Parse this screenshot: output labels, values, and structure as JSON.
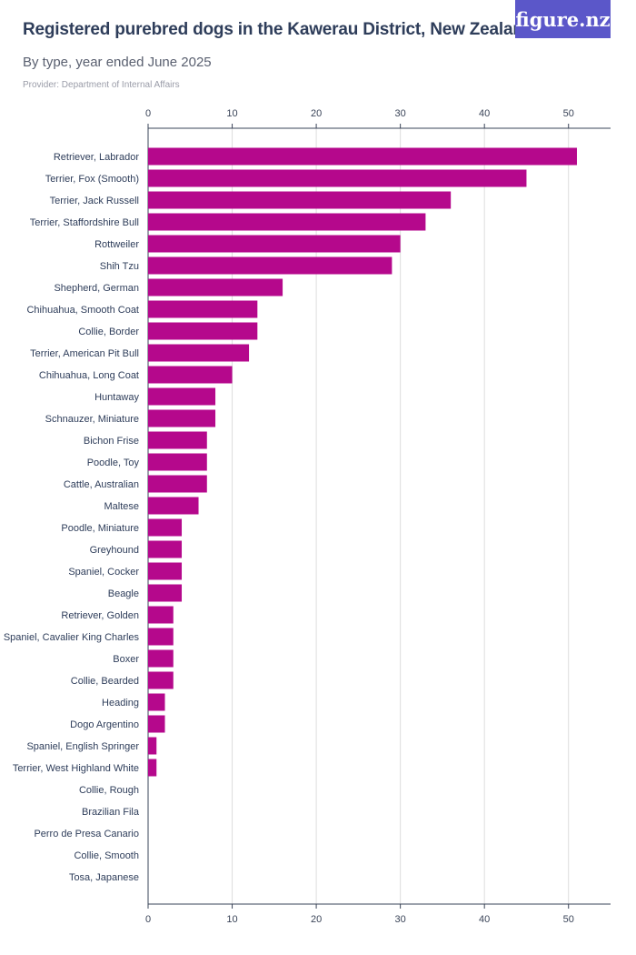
{
  "header": {
    "title": "Registered purebred dogs in the Kawerau District, New Zealand",
    "subtitle": "By type, year ended June 2025",
    "provider": "Provider: Department of Internal Affairs",
    "logo": "figure.nz"
  },
  "colors": {
    "bar": "#b5088c",
    "grid": "#dddddd",
    "axis": "#3a4458"
  },
  "chart_data": {
    "type": "bar",
    "orientation": "horizontal",
    "title": "Registered purebred dogs in the Kawerau District, New Zealand",
    "subtitle": "By type, year ended June 2025",
    "xlabel": "",
    "ylabel": "",
    "xlim": [
      0,
      55
    ],
    "xticks": [
      0,
      10,
      20,
      30,
      40,
      50
    ],
    "grid": true,
    "categories": [
      "Retriever, Labrador",
      "Terrier, Fox (Smooth)",
      "Terrier, Jack Russell",
      "Terrier, Staffordshire Bull",
      "Rottweiler",
      "Shih Tzu",
      "Shepherd, German",
      "Chihuahua, Smooth Coat",
      "Collie, Border",
      "Terrier, American Pit Bull",
      "Chihuahua, Long Coat",
      "Huntaway",
      "Schnauzer, Miniature",
      "Bichon Frise",
      "Poodle, Toy",
      "Cattle, Australian",
      "Maltese",
      "Poodle, Miniature",
      "Greyhound",
      "Spaniel, Cocker",
      "Beagle",
      "Retriever, Golden",
      "Spaniel, Cavalier King Charles",
      "Boxer",
      "Collie, Bearded",
      "Heading",
      "Dogo Argentino",
      "Spaniel, English Springer",
      "Terrier, West Highland White",
      "Collie, Rough",
      "Brazilian Fila",
      "Perro de Presa Canario",
      "Collie, Smooth",
      "Tosa, Japanese"
    ],
    "values": [
      51,
      45,
      36,
      33,
      30,
      29,
      16,
      13,
      13,
      12,
      10,
      8,
      8,
      7,
      7,
      7,
      6,
      4,
      4,
      4,
      4,
      3,
      3,
      3,
      3,
      2,
      2,
      1,
      1,
      0,
      0,
      0,
      0,
      0
    ]
  }
}
